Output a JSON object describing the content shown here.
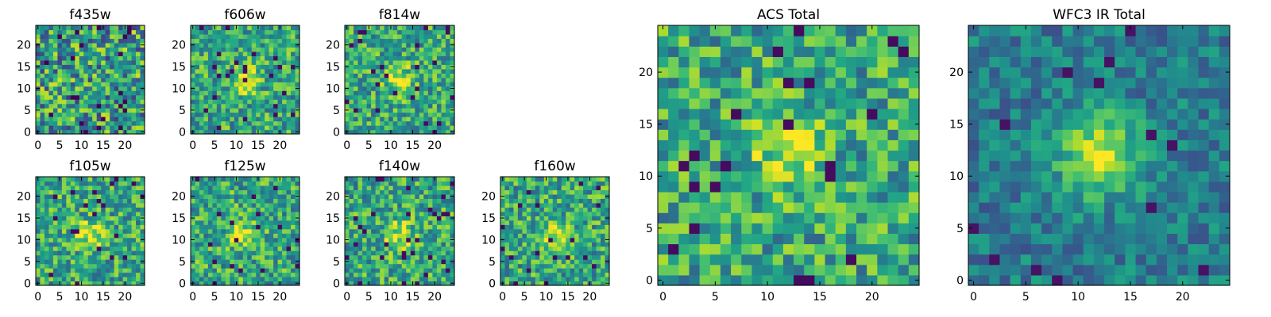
{
  "colormap": "viridis",
  "colors": {
    "low": "#440154",
    "mid": "#21918c",
    "high": "#fde725"
  },
  "chart_data": [
    {
      "type": "heatmap",
      "title": "f435w",
      "grid": [
        25,
        25
      ],
      "xticks": [
        "0",
        "5",
        "10",
        "15",
        "20"
      ],
      "yticks": [
        "0",
        "5",
        "10",
        "15",
        "20"
      ],
      "xlim": [
        0,
        25
      ],
      "ylim": [
        0,
        25
      ],
      "pattern": "noise",
      "seed": 11
    },
    {
      "type": "heatmap",
      "title": "f606w",
      "grid": [
        25,
        25
      ],
      "xticks": [
        "0",
        "5",
        "10",
        "15",
        "20"
      ],
      "yticks": [
        "0",
        "5",
        "10",
        "15",
        "20"
      ],
      "xlim": [
        0,
        25
      ],
      "ylim": [
        0,
        25
      ],
      "pattern": "source",
      "source_center": [
        12,
        12
      ],
      "seed": 23
    },
    {
      "type": "heatmap",
      "title": "f814w",
      "grid": [
        25,
        25
      ],
      "xticks": [
        "0",
        "5",
        "10",
        "15",
        "20"
      ],
      "yticks": [
        "0",
        "5",
        "10",
        "15",
        "20"
      ],
      "xlim": [
        0,
        25
      ],
      "ylim": [
        0,
        25
      ],
      "pattern": "source",
      "source_center": [
        12,
        12
      ],
      "seed": 37
    },
    {
      "type": "heatmap",
      "title": "f105w",
      "grid": [
        25,
        25
      ],
      "xticks": [
        "0",
        "5",
        "10",
        "15",
        "20"
      ],
      "yticks": [
        "0",
        "5",
        "10",
        "15",
        "20"
      ],
      "xlim": [
        0,
        25
      ],
      "ylim": [
        0,
        25
      ],
      "pattern": "source",
      "source_center": [
        12,
        11
      ],
      "seed": 41
    },
    {
      "type": "heatmap",
      "title": "f125w",
      "grid": [
        25,
        25
      ],
      "xticks": [
        "0",
        "5",
        "10",
        "15",
        "20"
      ],
      "yticks": [
        "0",
        "5",
        "10",
        "15",
        "20"
      ],
      "xlim": [
        0,
        25
      ],
      "ylim": [
        0,
        25
      ],
      "pattern": "source",
      "source_center": [
        12,
        11
      ],
      "seed": 53
    },
    {
      "type": "heatmap",
      "title": "f140w",
      "grid": [
        25,
        25
      ],
      "xticks": [
        "0",
        "5",
        "10",
        "15",
        "20"
      ],
      "yticks": [
        "0",
        "5",
        "10",
        "15",
        "20"
      ],
      "xlim": [
        0,
        25
      ],
      "ylim": [
        0,
        25
      ],
      "pattern": "source",
      "source_center": [
        12,
        11
      ],
      "seed": 67
    },
    {
      "type": "heatmap",
      "title": "f160w",
      "grid": [
        25,
        25
      ],
      "xticks": [
        "0",
        "5",
        "10",
        "15",
        "20"
      ],
      "yticks": [
        "0",
        "5",
        "10",
        "15",
        "20"
      ],
      "xlim": [
        0,
        25
      ],
      "ylim": [
        0,
        25
      ],
      "pattern": "source",
      "source_center": [
        12,
        11
      ],
      "seed": 79
    },
    {
      "type": "heatmap",
      "title": "ACS Total",
      "grid": [
        25,
        25
      ],
      "xticks": [
        "0",
        "5",
        "10",
        "15",
        "20"
      ],
      "yticks": [
        "0",
        "5",
        "10",
        "15",
        "20"
      ],
      "xlim": [
        0,
        25
      ],
      "ylim": [
        0,
        25
      ],
      "pattern": "source",
      "source_center": [
        12,
        12
      ],
      "seed": 97
    },
    {
      "type": "heatmap",
      "title": "WFC3 IR Total",
      "grid": [
        25,
        25
      ],
      "xticks": [
        "0",
        "5",
        "10",
        "15",
        "20"
      ],
      "yticks": [
        "0",
        "5",
        "10",
        "15",
        "20"
      ],
      "xlim": [
        0,
        25
      ],
      "ylim": [
        0,
        25
      ],
      "pattern": "source_dark_bg",
      "source_center": [
        12,
        12
      ],
      "seed": 113
    }
  ]
}
